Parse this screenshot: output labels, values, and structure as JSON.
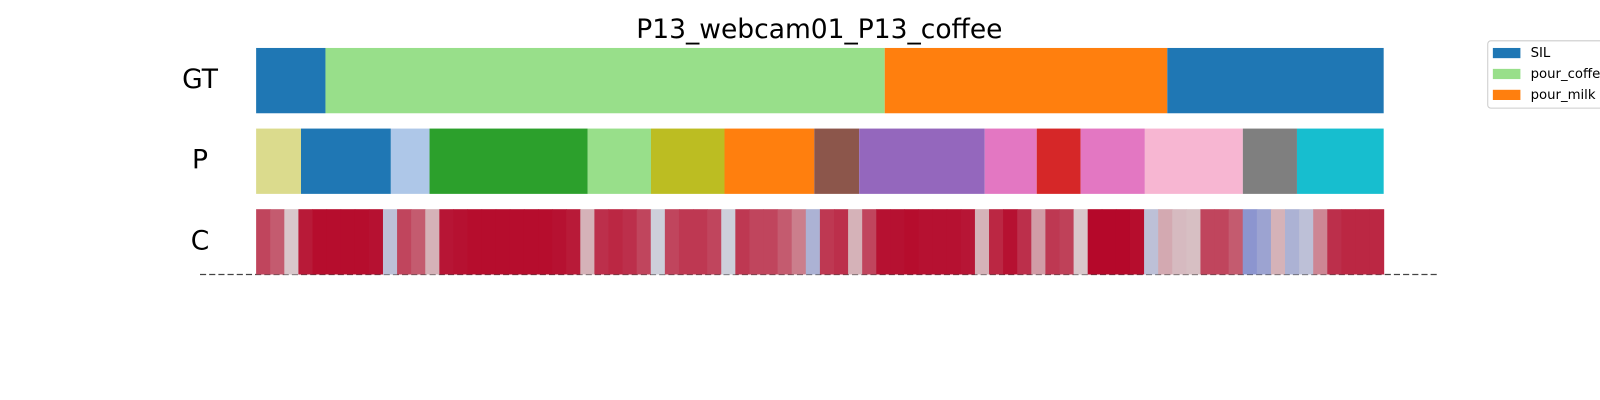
{
  "chart_data": {
    "type": "segmentation",
    "title": "P13_webcam01_P13_coffee",
    "xlim": [
      0,
      100
    ],
    "rows": [
      {
        "label": "GT",
        "segments": [
          {
            "start": 0,
            "end": 6.15,
            "color": "#1f77b4"
          },
          {
            "start": 6.15,
            "end": 55.75,
            "color": "#98df8a"
          },
          {
            "start": 55.75,
            "end": 80.81,
            "color": "#ff7f0e"
          },
          {
            "start": 80.81,
            "end": 100,
            "color": "#1f77b4"
          }
        ]
      },
      {
        "label": "P",
        "segments": [
          {
            "start": 0,
            "end": 3.98,
            "color": "#dbdb8d"
          },
          {
            "start": 3.98,
            "end": 11.95,
            "color": "#1f77b4"
          },
          {
            "start": 11.95,
            "end": 15.38,
            "color": "#aec7e8"
          },
          {
            "start": 15.38,
            "end": 29.41,
            "color": "#2ca02c"
          },
          {
            "start": 29.41,
            "end": 35.02,
            "color": "#98df8a"
          },
          {
            "start": 35.02,
            "end": 41.54,
            "color": "#bcbd22"
          },
          {
            "start": 41.54,
            "end": 49.5,
            "color": "#ff7f0e"
          },
          {
            "start": 49.5,
            "end": 53.48,
            "color": "#8c564b"
          },
          {
            "start": 53.48,
            "end": 64.62,
            "color": "#9467bd"
          },
          {
            "start": 64.62,
            "end": 69.23,
            "color": "#e377c2"
          },
          {
            "start": 69.23,
            "end": 73.12,
            "color": "#d62728"
          },
          {
            "start": 73.12,
            "end": 78.82,
            "color": "#e377c2"
          },
          {
            "start": 78.82,
            "end": 87.51,
            "color": "#f7b6d2"
          },
          {
            "start": 87.51,
            "end": 92.31,
            "color": "#7f7f7f"
          },
          {
            "start": 92.31,
            "end": 100,
            "color": "#17becf"
          }
        ]
      },
      {
        "label": "C",
        "colormap": "coolwarm",
        "clim": [
          0,
          1
        ],
        "values": [
          0.85,
          0.8,
          0.55,
          0.95,
          0.98,
          0.98,
          0.98,
          0.98,
          0.97,
          0.4,
          0.85,
          0.8,
          0.6,
          0.96,
          0.97,
          0.98,
          0.98,
          0.98,
          0.98,
          0.98,
          0.98,
          0.97,
          0.95,
          0.6,
          0.9,
          0.92,
          0.9,
          0.85,
          0.45,
          0.85,
          0.88,
          0.88,
          0.85,
          0.45,
          0.88,
          0.85,
          0.85,
          0.8,
          0.72,
          0.35,
          0.88,
          0.9,
          0.6,
          0.85,
          0.97,
          0.97,
          0.98,
          0.97,
          0.97,
          0.97,
          0.96,
          0.6,
          0.92,
          0.97,
          0.9,
          0.65,
          0.88,
          0.86,
          0.55,
          0.99,
          0.99,
          0.99,
          0.98,
          0.4,
          0.62,
          0.58,
          0.57,
          0.85,
          0.85,
          0.8,
          0.25,
          0.3,
          0.6,
          0.35,
          0.4,
          0.7,
          0.9,
          0.92,
          0.92,
          0.92
        ]
      }
    ],
    "legend": [
      {
        "name": "SIL",
        "color": "#1f77b4"
      },
      {
        "name": "pour_coffe",
        "color": "#98df8a"
      },
      {
        "name": "pour_milk",
        "color": "#ff7f0e"
      }
    ]
  }
}
